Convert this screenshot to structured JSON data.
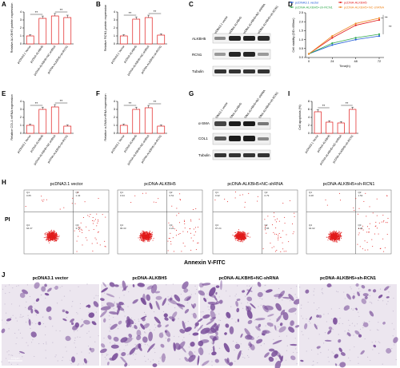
{
  "colors": {
    "bar_fill": "#ffffff",
    "bar_edge": "#e11b1b",
    "scatter": "#e11b1b",
    "micro_bg": "#ece6ef",
    "micro_stain": "#7a4f9a",
    "line_vector": "#1f5bd6",
    "line_alkbh5": "#e11b1b",
    "line_rcn1": "#2ea84b",
    "line_nc": "#f08a24"
  },
  "panels": {
    "A": "A",
    "B": "B",
    "C": "C",
    "D": "D",
    "E": "E",
    "F": "F",
    "G": "G",
    "I": "I",
    "H": "H",
    "J": "J"
  },
  "groups": [
    "pcDNA3.1 Vector",
    "pcDNA-ALKBH5",
    "pcDNA-ALKBH5+NC-shRNA",
    "pcDNA-ALKBH5+sh-RCN1"
  ],
  "groups_lower": [
    "pcDNA3.1 vector",
    "pcDNA-ALKBH5",
    "pcDNA-ALKBH5+NC-shRNA",
    "pcDNA-ALKBH5+sh-RCN1"
  ],
  "sig": "**",
  "bar_charts": {
    "A": {
      "ylabel": "Relative ALKBH5 protein expression",
      "ticks": [
        "0",
        "1",
        "2",
        "3",
        "4"
      ]
    },
    "B": {
      "ylabel": "Relative RCN1 protein expression",
      "ticks": [
        "0",
        "1",
        "2",
        "3",
        "4"
      ]
    },
    "E": {
      "ylabel": "Relative COL1 mRNA expression",
      "ticks": [
        "0",
        "1",
        "2",
        "3",
        "4"
      ]
    },
    "F": {
      "ylabel": "Relative α-SMA mRNA expression",
      "ticks": [
        "0",
        "1",
        "2",
        "3",
        "4"
      ]
    },
    "I": {
      "ylabel": "Cell apoptosis (%)",
      "ticks": [
        "0",
        "2",
        "4",
        "6",
        "8"
      ]
    }
  },
  "chart_data": [
    {
      "type": "bar",
      "panel": "A",
      "categories": [
        "pcDNA3.1 Vector",
        "pcDNA-ALKBH5",
        "pcDNA-ALKBH5+NC-shRNA",
        "pcDNA-ALKBH5+sh-RCN1"
      ],
      "values": [
        1.0,
        3.2,
        3.5,
        3.3
      ],
      "ylabel": "Relative ALKBH5 protein expression",
      "ylim": [
        0,
        4
      ]
    },
    {
      "type": "bar",
      "panel": "B",
      "categories": [
        "pcDNA3.1 Vector",
        "pcDNA-ALKBH5",
        "pcDNA-ALKBH5+NC-shRNA",
        "pcDNA-ALKBH5+sh-RCN1"
      ],
      "values": [
        1.0,
        3.1,
        3.3,
        1.1
      ],
      "ylabel": "Relative RCN1 protein expression",
      "ylim": [
        0,
        4
      ]
    },
    {
      "type": "line",
      "panel": "D",
      "x": [
        0,
        24,
        48,
        72
      ],
      "xlabel": "Time(h)",
      "ylabel": "Cell viability (OD=490nm)",
      "xticks": [
        "0",
        "24",
        "48",
        "72"
      ],
      "yticks": [
        "0.0",
        "0.5",
        "1.0",
        "1.5",
        "2.0",
        "2.5"
      ],
      "ylim": [
        0,
        2.5
      ],
      "series": [
        {
          "name": "pcDNA3.1 vector",
          "values": [
            0.2,
            0.7,
            1.0,
            1.2
          ]
        },
        {
          "name": "pcDNA-ALKBH5",
          "values": [
            0.2,
            1.1,
            1.8,
            2.1
          ]
        },
        {
          "name": "pcDNA-ALKBH5+sh-RCN1",
          "values": [
            0.2,
            0.8,
            1.1,
            1.3
          ]
        },
        {
          "name": "pcDNA-ALKBH5+NC-shRNA",
          "values": [
            0.2,
            1.2,
            1.9,
            2.2
          ]
        }
      ]
    },
    {
      "type": "bar",
      "panel": "E",
      "categories": [
        "pcDNA3.1 Vector",
        "pcDNA-ALKBH5",
        "pcDNA-ALKBH5+NC-shRNA",
        "pcDNA-ALKBH5+sh-RCN1"
      ],
      "values": [
        1.0,
        3.0,
        3.3,
        0.9
      ],
      "ylabel": "Relative COL1 mRNA expression",
      "ylim": [
        0,
        4
      ]
    },
    {
      "type": "bar",
      "panel": "F",
      "categories": [
        "pcDNA3.1 Vector",
        "pcDNA-ALKBH5",
        "pcDNA-ALKBH5+NC-shRNA",
        "pcDNA-ALKBH5+sh-RCN1"
      ],
      "values": [
        1.0,
        3.0,
        3.2,
        0.9
      ],
      "ylabel": "Relative α-SMA mRNA expression",
      "ylim": [
        0,
        4
      ]
    },
    {
      "type": "bar",
      "panel": "I",
      "categories": [
        "pcDNA3.1 Vector",
        "pcDNA-ALKBH5",
        "pcDNA-ALKBH5+NC-shRNA",
        "pcDNA-ALKBH5+sh-RCN1"
      ],
      "values": [
        5.4,
        2.8,
        2.6,
        6.0
      ],
      "ylabel": "Cell apoptosis (%)",
      "ylim": [
        0,
        8
      ]
    }
  ],
  "blots": {
    "C": {
      "labels": [
        "ALKBH5",
        "RCN1",
        "Tubulin"
      ]
    },
    "G": {
      "labels": [
        "α-SMA",
        "COL1",
        "Tubulin"
      ]
    }
  },
  "flow": {
    "ylabel": "PI",
    "xlabel": "Annexin V-FITC",
    "plots": [
      {
        "title": "pcDNA3.1 vector",
        "q1": "Q1",
        "q1v": "0.65",
        "q2": "Q2",
        "q2v": "1.43",
        "q4": "Q4",
        "q4v": "94.37",
        "q3": "Q3",
        "q3v": "3.73"
      },
      {
        "title": "pcDNA-ALKBH5",
        "q1": "Q1",
        "q1v": "0.34",
        "q2": "Q2",
        "q2v": "0.51",
        "q4": "Q4",
        "q4v": "96.33",
        "q3": "Q3",
        "q3v": "2.22"
      },
      {
        "title": "pcDNA-ALKBH5+NC-shRNA",
        "q1": "Q1",
        "q1v": "0.32",
        "q2": "Q2",
        "q2v": "0.79",
        "q4": "Q4",
        "q4v": "97.24",
        "q3": "Q3",
        "q3v": "1.65"
      },
      {
        "title": "pcDNA-ALKBH5+sh-RCN1",
        "q1": "Q1",
        "q1v": "0.28",
        "q2": "Q2",
        "q2v": "1.52",
        "q4": "Q4",
        "q4v": "94.02",
        "q3": "Q3",
        "q3v": "4.26"
      }
    ]
  },
  "micro": {
    "titles": [
      "pcDNA3.1 vector",
      "pcDNA-ALKBH5",
      "pcDNA-ALKBH5+NC-shRNA",
      "pcDNA-ALKBH5+sh-RCN1"
    ],
    "scalebar": "100μm"
  }
}
